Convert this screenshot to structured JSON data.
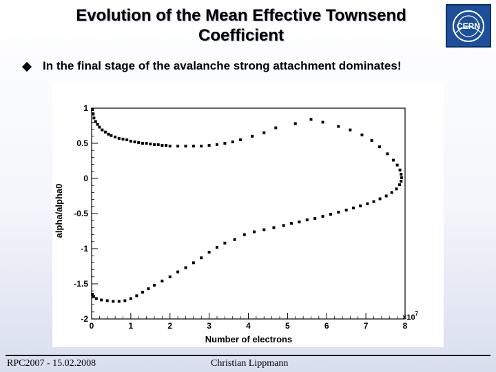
{
  "slide": {
    "title": "Evolution of the Mean Effective Townsend Coefficient",
    "bullet": "In the final stage of the avalanche strong attachment dominates!",
    "logo_text": "CERN",
    "footer_left": "RPC2007 - 15.02.2008",
    "footer_center": "Christian Lippmann"
  },
  "chart_data": {
    "type": "scatter",
    "title": "",
    "xlabel": "Number of electrons",
    "ylabel": "alpha/alpha0",
    "x_exponent_label": "×10",
    "x_exponent_power": "7",
    "xlim": [
      0,
      8
    ],
    "ylim": [
      -2,
      1
    ],
    "x_ticks": [
      0,
      1,
      2,
      3,
      4,
      5,
      6,
      7,
      8
    ],
    "y_ticks": [
      1,
      0.5,
      0,
      -0.5,
      -1,
      -1.5,
      -2
    ],
    "x_tick_labels": [
      "0",
      "1",
      "2",
      "3",
      "4",
      "5",
      "6",
      "7",
      "8"
    ],
    "y_tick_labels": [
      "1",
      "0.5",
      "0",
      "-0.5",
      "-1",
      "-1.5",
      "-2"
    ],
    "grid": false,
    "series": [
      {
        "name": "alpha/alpha0",
        "points": [
          [
            0.02,
            0.98
          ],
          [
            0.04,
            0.92
          ],
          [
            0.06,
            0.86
          ],
          [
            0.1,
            0.81
          ],
          [
            0.15,
            0.77
          ],
          [
            0.2,
            0.73
          ],
          [
            0.27,
            0.69
          ],
          [
            0.35,
            0.66
          ],
          [
            0.43,
            0.63
          ],
          [
            0.5,
            0.61
          ],
          [
            0.6,
            0.59
          ],
          [
            0.7,
            0.57
          ],
          [
            0.8,
            0.56
          ],
          [
            0.9,
            0.55
          ],
          [
            1.0,
            0.53
          ],
          [
            1.1,
            0.52
          ],
          [
            1.2,
            0.51
          ],
          [
            1.3,
            0.5
          ],
          [
            1.4,
            0.5
          ],
          [
            1.5,
            0.49
          ],
          [
            1.6,
            0.48
          ],
          [
            1.7,
            0.48
          ],
          [
            1.8,
            0.47
          ],
          [
            1.9,
            0.47
          ],
          [
            2.0,
            0.46
          ],
          [
            2.2,
            0.46
          ],
          [
            2.4,
            0.46
          ],
          [
            2.6,
            0.46
          ],
          [
            2.8,
            0.46
          ],
          [
            3.0,
            0.47
          ],
          [
            3.2,
            0.48
          ],
          [
            3.4,
            0.5
          ],
          [
            3.6,
            0.52
          ],
          [
            3.8,
            0.55
          ],
          [
            4.1,
            0.6
          ],
          [
            4.4,
            0.65
          ],
          [
            4.7,
            0.72
          ],
          [
            5.2,
            0.78
          ],
          [
            5.6,
            0.84
          ],
          [
            5.9,
            0.8
          ],
          [
            6.3,
            0.74
          ],
          [
            6.6,
            0.69
          ],
          [
            6.9,
            0.62
          ],
          [
            7.15,
            0.54
          ],
          [
            7.35,
            0.45
          ],
          [
            7.55,
            0.35
          ],
          [
            7.7,
            0.26
          ],
          [
            7.8,
            0.19
          ],
          [
            7.87,
            0.12
          ],
          [
            7.9,
            0.06
          ],
          [
            7.91,
            0.01
          ],
          [
            7.9,
            -0.04
          ],
          [
            7.86,
            -0.09
          ],
          [
            7.78,
            -0.15
          ],
          [
            7.66,
            -0.2
          ],
          [
            7.52,
            -0.25
          ],
          [
            7.36,
            -0.29
          ],
          [
            7.2,
            -0.33
          ],
          [
            7.04,
            -0.36
          ],
          [
            6.86,
            -0.39
          ],
          [
            6.68,
            -0.42
          ],
          [
            6.5,
            -0.45
          ],
          [
            6.3,
            -0.48
          ],
          [
            6.1,
            -0.51
          ],
          [
            5.9,
            -0.54
          ],
          [
            5.7,
            -0.57
          ],
          [
            5.5,
            -0.59
          ],
          [
            5.3,
            -0.62
          ],
          [
            5.1,
            -0.64
          ],
          [
            4.9,
            -0.67
          ],
          [
            4.65,
            -0.7
          ],
          [
            4.4,
            -0.73
          ],
          [
            4.15,
            -0.76
          ],
          [
            3.9,
            -0.8
          ],
          [
            3.65,
            -0.87
          ],
          [
            3.4,
            -0.92
          ],
          [
            3.2,
            -0.98
          ],
          [
            3.0,
            -1.05
          ],
          [
            2.8,
            -1.13
          ],
          [
            2.6,
            -1.2
          ],
          [
            2.4,
            -1.27
          ],
          [
            2.2,
            -1.33
          ],
          [
            2.0,
            -1.4
          ],
          [
            1.8,
            -1.46
          ],
          [
            1.6,
            -1.52
          ],
          [
            1.45,
            -1.57
          ],
          [
            1.3,
            -1.62
          ],
          [
            1.15,
            -1.67
          ],
          [
            1.0,
            -1.71
          ],
          [
            0.85,
            -1.74
          ],
          [
            0.7,
            -1.75
          ],
          [
            0.55,
            -1.75
          ],
          [
            0.4,
            -1.74
          ],
          [
            0.25,
            -1.73
          ],
          [
            0.12,
            -1.71
          ],
          [
            0.05,
            -1.68
          ],
          [
            0.02,
            -1.65
          ]
        ]
      }
    ]
  }
}
